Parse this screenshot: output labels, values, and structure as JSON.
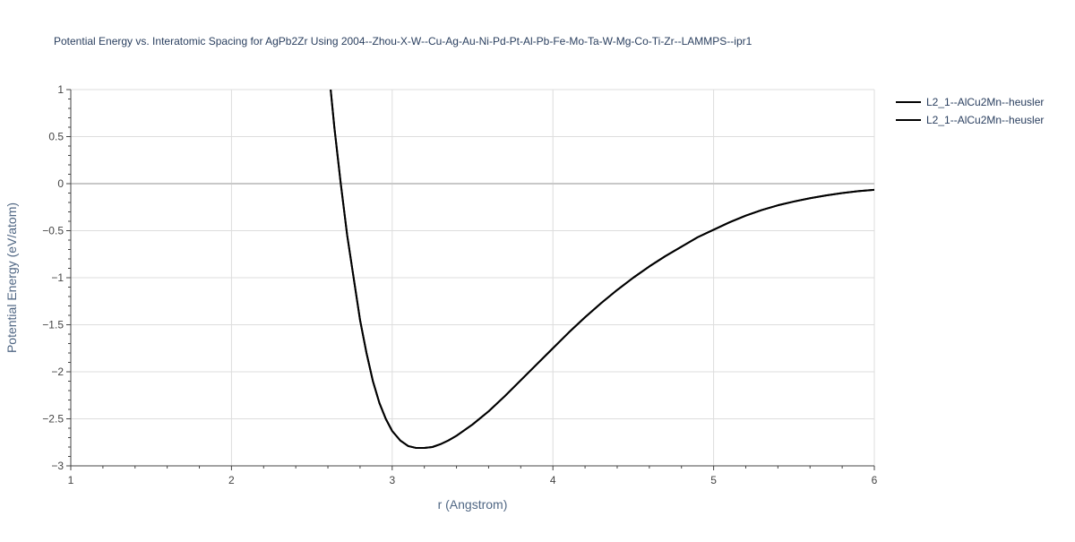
{
  "chart_data": {
    "type": "line",
    "title": "Potential Energy vs. Interatomic Spacing for AgPb2Zr Using 2004--Zhou-X-W--Cu-Ag-Au-Ni-Pd-Pt-Al-Pb-Fe-Mo-Ta-W-Mg-Co-Ti-Zr--LAMMPS--ipr1",
    "xlabel": "r (Angstrom)",
    "ylabel": "Potential Energy (eV/atom)",
    "xlim": [
      1,
      6
    ],
    "ylim": [
      -3,
      1
    ],
    "x_ticks": [
      1,
      2,
      3,
      4,
      5,
      6
    ],
    "x_tick_labels": [
      "1",
      "2",
      "3",
      "4",
      "5",
      "6"
    ],
    "y_ticks": [
      1,
      0.5,
      0,
      -0.5,
      -1,
      -1.5,
      -2,
      -2.5,
      -3
    ],
    "y_tick_labels": [
      "1",
      "0.5",
      "0",
      "−0.5",
      "−1",
      "−1.5",
      "−2",
      "−2.5",
      "−3"
    ],
    "grid": true,
    "legend_position": "top-right",
    "series": [
      {
        "name": "L2_1--AlCu2Mn--heusler",
        "color": "#000000",
        "x": [
          2.6,
          2.64,
          2.68,
          2.72,
          2.76,
          2.8,
          2.84,
          2.88,
          2.92,
          2.96,
          3.0,
          3.05,
          3.1,
          3.15,
          3.2,
          3.25,
          3.3,
          3.35,
          3.4,
          3.5,
          3.6,
          3.7,
          3.8,
          3.9,
          4.0,
          4.1,
          4.2,
          4.3,
          4.4,
          4.5,
          4.6,
          4.7,
          4.8,
          4.9,
          5.0,
          5.1,
          5.2,
          5.3,
          5.4,
          5.5,
          5.6,
          5.7,
          5.8,
          5.9,
          6.0
        ],
        "y": [
          1.3,
          0.6,
          0.0,
          -0.55,
          -1.0,
          -1.45,
          -1.8,
          -2.1,
          -2.33,
          -2.5,
          -2.63,
          -2.73,
          -2.79,
          -2.81,
          -2.81,
          -2.8,
          -2.77,
          -2.73,
          -2.68,
          -2.56,
          -2.42,
          -2.26,
          -2.09,
          -1.92,
          -1.75,
          -1.58,
          -1.42,
          -1.27,
          -1.13,
          -1.0,
          -0.88,
          -0.77,
          -0.67,
          -0.57,
          -0.49,
          -0.41,
          -0.34,
          -0.28,
          -0.23,
          -0.19,
          -0.155,
          -0.125,
          -0.1,
          -0.08,
          -0.065
        ]
      },
      {
        "name": "L2_1--AlCu2Mn--heusler",
        "color": "#000000",
        "x": [
          2.6,
          2.64,
          2.68,
          2.72,
          2.76,
          2.8,
          2.84,
          2.88,
          2.92,
          2.96,
          3.0,
          3.05,
          3.1,
          3.15,
          3.2,
          3.25,
          3.3,
          3.35,
          3.4,
          3.5,
          3.6,
          3.7,
          3.8,
          3.9,
          4.0,
          4.1,
          4.2,
          4.3,
          4.4,
          4.5,
          4.6,
          4.7,
          4.8,
          4.9,
          5.0,
          5.1,
          5.2,
          5.3,
          5.4,
          5.5,
          5.6,
          5.7,
          5.8,
          5.9,
          6.0
        ],
        "y": [
          1.3,
          0.6,
          0.0,
          -0.55,
          -1.0,
          -1.45,
          -1.8,
          -2.1,
          -2.33,
          -2.5,
          -2.63,
          -2.73,
          -2.79,
          -2.81,
          -2.81,
          -2.8,
          -2.77,
          -2.73,
          -2.68,
          -2.56,
          -2.42,
          -2.26,
          -2.09,
          -1.92,
          -1.75,
          -1.58,
          -1.42,
          -1.27,
          -1.13,
          -1.0,
          -0.88,
          -0.77,
          -0.67,
          -0.57,
          -0.49,
          -0.41,
          -0.34,
          -0.28,
          -0.23,
          -0.19,
          -0.155,
          -0.125,
          -0.1,
          -0.08,
          -0.065
        ]
      }
    ]
  }
}
